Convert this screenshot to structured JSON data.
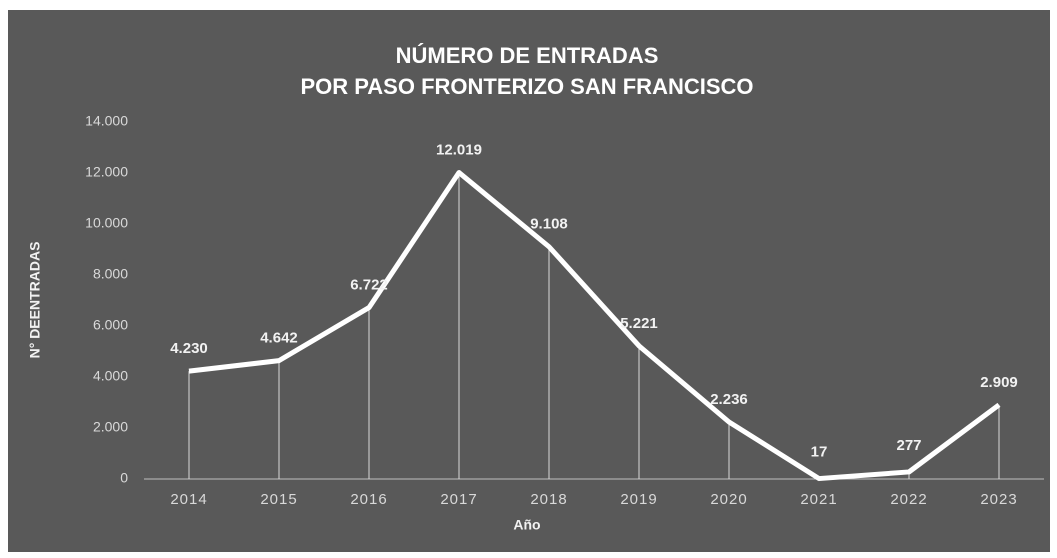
{
  "chart_data": {
    "type": "line",
    "title": [
      "NÚMERO DE ENTRADAS",
      "POR PASO FRONTERIZO SAN FRANCISCO"
    ],
    "x_label": "Año",
    "y_label": "N° DEENTRADAS",
    "categories": [
      "2014",
      "2015",
      "2016",
      "2017",
      "2018",
      "2019",
      "2020",
      "2021",
      "2022",
      "2023"
    ],
    "values": [
      4230,
      4642,
      6722,
      12019,
      9108,
      5221,
      2236,
      17,
      277,
      2909
    ],
    "value_labels": [
      "4.230",
      "4.642",
      "6.722",
      "12.019",
      "9.108",
      "5.221",
      "2.236",
      "17",
      "277",
      "2.909"
    ],
    "color": "#ffffff",
    "ylim": [
      0,
      14000
    ],
    "yticks": [
      0,
      {
        "value": 2000,
        "label": "2.000"
      },
      {
        "value": 4000,
        "label": "4.000"
      },
      {
        "value": 6000,
        "label": "6.000"
      },
      {
        "value": 8000,
        "label": "8.000"
      },
      {
        "value": 10000,
        "label": "10.000"
      },
      {
        "value": 12000,
        "label": "12.000"
      },
      {
        "value": 14000,
        "label": "14.000"
      }
    ],
    "drop_lines": true
  }
}
